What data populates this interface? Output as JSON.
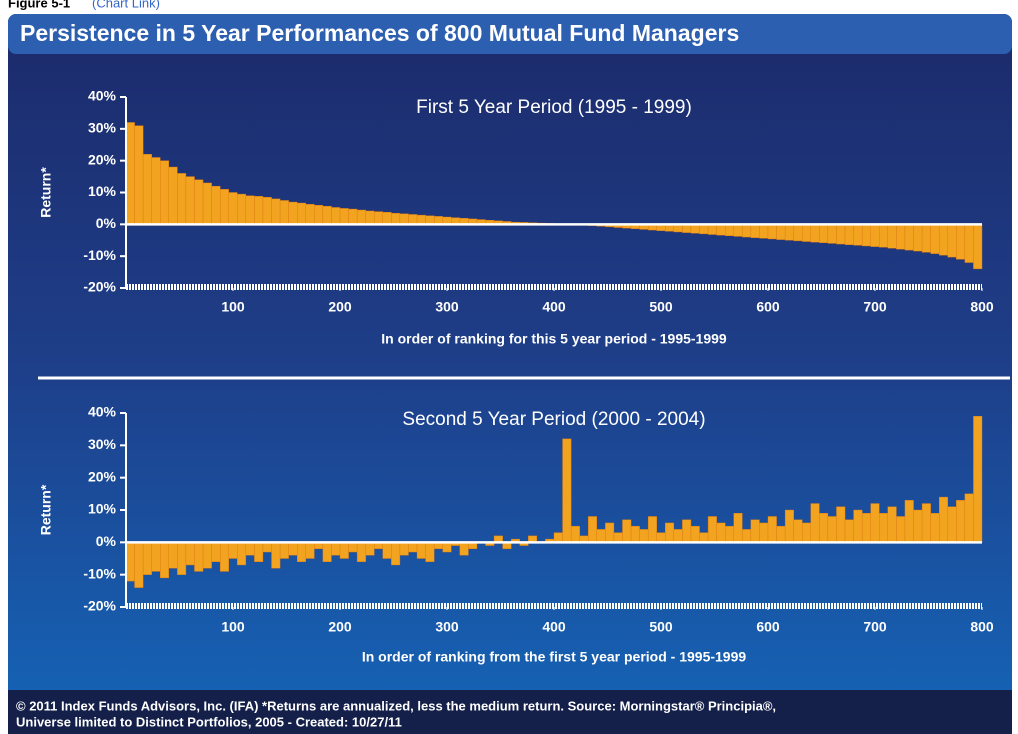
{
  "header": {
    "figure_label": "Figure 5-1",
    "link": "(Chart Link)"
  },
  "title": "Persistence in 5 Year Performances of 800 Mutual Fund Managers",
  "footer": [
    "© 2011 Index Funds Advisors, Inc. (IFA)   *Returns are annualized, less the medium return. Source: Morningstar® Principia®,",
    "Universe limited to Distinct Portfolios, 2005 - Created: 10/27/11"
  ],
  "chart_data": [
    {
      "type": "bar",
      "title": "First 5 Year Period (1995 - 1999)",
      "ylabel": "Return*",
      "xlabel": "In order of ranking for this 5 year period - 1995-1999",
      "color": "#f2a31f",
      "xlim": [
        0,
        800
      ],
      "xticks": [
        100,
        200,
        300,
        400,
        500,
        600,
        700,
        800
      ],
      "ylim": [
        -20,
        40
      ],
      "yticks": [
        {
          "value": 40,
          "label": "40%"
        },
        {
          "value": 30,
          "label": "30%"
        },
        {
          "value": 20,
          "label": "20%"
        },
        {
          "value": 10,
          "label": "10%"
        },
        {
          "value": 0,
          "label": "0%"
        },
        {
          "value": -10,
          "label": "-10%"
        },
        {
          "value": -20,
          "label": "-20%"
        }
      ],
      "x": [
        8,
        16,
        24,
        32,
        40,
        48,
        56,
        64,
        72,
        80,
        88,
        96,
        104,
        112,
        120,
        128,
        136,
        144,
        152,
        160,
        168,
        176,
        184,
        192,
        200,
        208,
        216,
        224,
        232,
        240,
        248,
        256,
        264,
        272,
        280,
        288,
        296,
        304,
        312,
        320,
        328,
        336,
        344,
        352,
        360,
        368,
        376,
        384,
        392,
        400,
        408,
        416,
        424,
        432,
        440,
        448,
        456,
        464,
        472,
        480,
        488,
        496,
        504,
        512,
        520,
        528,
        536,
        544,
        552,
        560,
        568,
        576,
        584,
        592,
        600,
        608,
        616,
        624,
        632,
        640,
        648,
        656,
        664,
        672,
        680,
        688,
        696,
        704,
        712,
        720,
        728,
        736,
        744,
        752,
        760,
        768,
        776,
        784,
        792,
        800
      ],
      "values": [
        32,
        31,
        22,
        21,
        20,
        18,
        16,
        15,
        14,
        13,
        12,
        11,
        10,
        9.5,
        9,
        8.8,
        8.5,
        8,
        7.5,
        7,
        6.7,
        6.3,
        6,
        5.7,
        5.3,
        5,
        4.8,
        4.5,
        4.2,
        4,
        3.8,
        3.5,
        3.3,
        3.1,
        2.9,
        2.7,
        2.5,
        2.3,
        2.1,
        1.9,
        1.7,
        1.5,
        1.3,
        1.1,
        0.9,
        0.7,
        0.6,
        0.5,
        0.4,
        0.3,
        0.2,
        0.1,
        0,
        -0.2,
        -0.4,
        -0.6,
        -0.8,
        -1,
        -1.2,
        -1.4,
        -1.6,
        -1.8,
        -2,
        -2.2,
        -2.4,
        -2.6,
        -2.8,
        -3,
        -3.2,
        -3.4,
        -3.6,
        -3.8,
        -4,
        -4.2,
        -4.4,
        -4.6,
        -4.8,
        -5,
        -5.2,
        -5.4,
        -5.6,
        -5.8,
        -6,
        -6.2,
        -6.4,
        -6.6,
        -6.8,
        -7,
        -7.2,
        -7.5,
        -7.8,
        -8.1,
        -8.4,
        -8.8,
        -9.2,
        -9.7,
        -10.3,
        -11,
        -12,
        -14
      ]
    },
    {
      "type": "bar",
      "title": "Second 5 Year Period (2000 - 2004)",
      "ylabel": "Return*",
      "xlabel": "In order of ranking from the first 5 year period - 1995-1999",
      "color": "#f2a31f",
      "xlim": [
        0,
        800
      ],
      "xticks": [
        100,
        200,
        300,
        400,
        500,
        600,
        700,
        800
      ],
      "ylim": [
        -20,
        40
      ],
      "yticks": [
        {
          "value": 40,
          "label": "40%"
        },
        {
          "value": 30,
          "label": "30%"
        },
        {
          "value": 20,
          "label": "20%"
        },
        {
          "value": 10,
          "label": "10%"
        },
        {
          "value": 0,
          "label": "0%"
        },
        {
          "value": -10,
          "label": "-10%"
        },
        {
          "value": -20,
          "label": "-20%"
        }
      ],
      "x": [
        8,
        16,
        24,
        32,
        40,
        48,
        56,
        64,
        72,
        80,
        88,
        96,
        104,
        112,
        120,
        128,
        136,
        144,
        152,
        160,
        168,
        176,
        184,
        192,
        200,
        208,
        216,
        224,
        232,
        240,
        248,
        256,
        264,
        272,
        280,
        288,
        296,
        304,
        312,
        320,
        328,
        336,
        344,
        352,
        360,
        368,
        376,
        384,
        392,
        400,
        408,
        416,
        424,
        432,
        440,
        448,
        456,
        464,
        472,
        480,
        488,
        496,
        504,
        512,
        520,
        528,
        536,
        544,
        552,
        560,
        568,
        576,
        584,
        592,
        600,
        608,
        616,
        624,
        632,
        640,
        648,
        656,
        664,
        672,
        680,
        688,
        696,
        704,
        712,
        720,
        728,
        736,
        744,
        752,
        760,
        768,
        776,
        784,
        792,
        800
      ],
      "values": [
        -12,
        -14,
        -10,
        -9,
        -11,
        -8,
        -10,
        -7,
        -9,
        -8,
        -6,
        -9,
        -5,
        -7,
        -4,
        -6,
        -3,
        -8,
        -5,
        -4,
        -6,
        -5,
        -2,
        -6,
        -4,
        -5,
        -3,
        -6,
        -4,
        -2,
        -5,
        -7,
        -4,
        -3,
        -5,
        -6,
        -2,
        -3,
        -1,
        -4,
        -2,
        0,
        -1,
        2,
        -2,
        1,
        -1,
        2,
        0,
        1,
        3,
        32,
        5,
        2,
        8,
        4,
        6,
        3,
        7,
        5,
        4,
        8,
        3,
        6,
        4,
        7,
        5,
        3,
        8,
        6,
        5,
        9,
        4,
        7,
        6,
        8,
        5,
        10,
        7,
        6,
        12,
        9,
        8,
        11,
        7,
        10,
        9,
        12,
        9,
        11,
        8,
        13,
        10,
        12,
        9,
        14,
        11,
        13,
        15,
        39
      ]
    }
  ]
}
